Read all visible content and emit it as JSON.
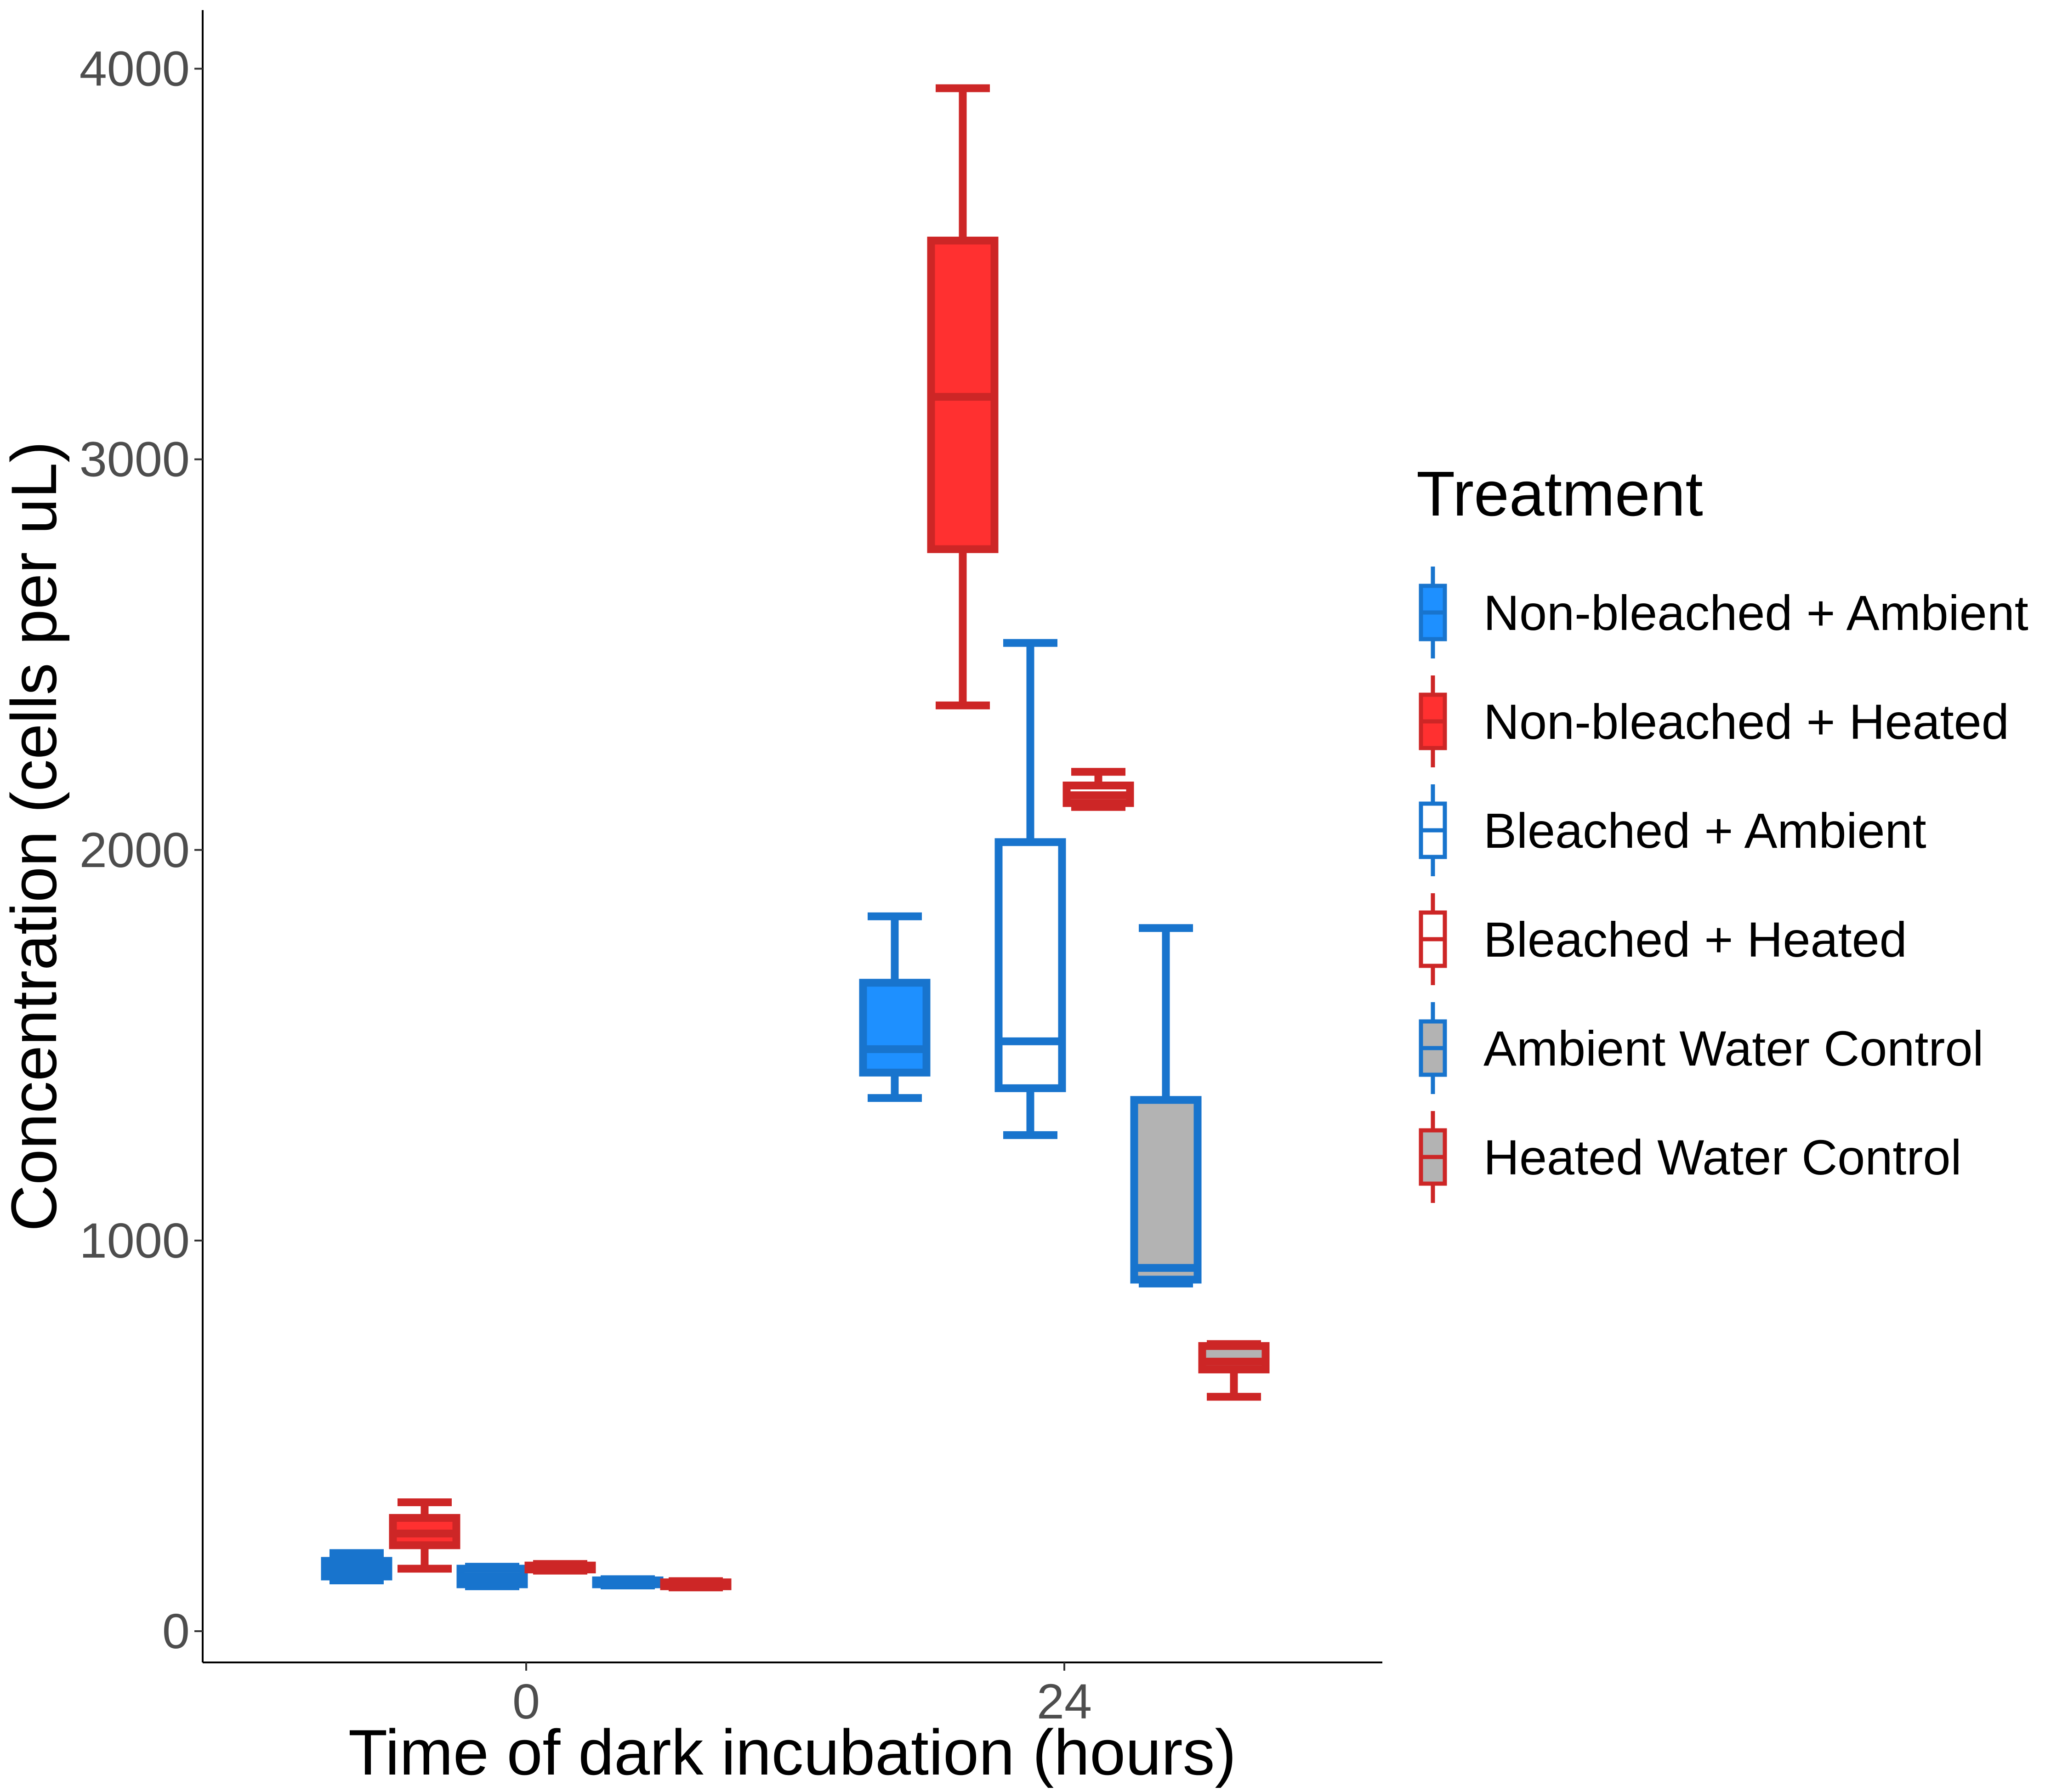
{
  "chart_data": {
    "type": "boxplot",
    "xlabel": "Time of dark incubation (hours)",
    "ylabel": "Concentration (cells per uL)",
    "categories": [
      "0",
      "24"
    ],
    "y_ticks": [
      "0",
      "1000",
      "2000",
      "3000",
      "4000"
    ],
    "ylim": [
      -80,
      4150
    ],
    "grid": false,
    "legend": {
      "title": "Treatment",
      "position": "right",
      "items": [
        {
          "label": "Non-bleached + Ambient",
          "stroke": "#1874CD",
          "fill": "#1E90FF"
        },
        {
          "label": "Non-bleached + Heated",
          "stroke": "#CD2626",
          "fill": "#FF3030"
        },
        {
          "label": "Bleached + Ambient",
          "stroke": "#1874CD",
          "fill": "#FFFFFF"
        },
        {
          "label": "Bleached + Heated",
          "stroke": "#CD2626",
          "fill": "#FFFFFF"
        },
        {
          "label": "Ambient Water Control",
          "stroke": "#1874CD",
          "fill": "#B3B3B3"
        },
        {
          "label": "Heated Water Control",
          "stroke": "#CD2626",
          "fill": "#B3B3B3"
        }
      ]
    },
    "series": [
      {
        "name": "Non-bleached + Ambient",
        "boxes": [
          {
            "x": "0",
            "min": 130,
            "q1": 140,
            "median": 160,
            "q3": 180,
            "max": 200
          },
          {
            "x": "24",
            "min": 1365,
            "q1": 1430,
            "median": 1490,
            "q3": 1660,
            "max": 1830
          }
        ]
      },
      {
        "name": "Non-bleached + Heated",
        "boxes": [
          {
            "x": "0",
            "min": 160,
            "q1": 220,
            "median": 250,
            "q3": 290,
            "max": 330
          },
          {
            "x": "24",
            "min": 2370,
            "q1": 2770,
            "median": 3160,
            "q3": 3560,
            "max": 3950
          }
        ]
      },
      {
        "name": "Bleached + Ambient",
        "boxes": [
          {
            "x": "0",
            "min": 115,
            "q1": 120,
            "median": 140,
            "q3": 160,
            "max": 165
          },
          {
            "x": "24",
            "min": 1270,
            "q1": 1390,
            "median": 1510,
            "q3": 2020,
            "max": 2530
          }
        ]
      },
      {
        "name": "Bleached + Heated",
        "boxes": [
          {
            "x": "0",
            "min": 155,
            "q1": 158,
            "median": 163,
            "q3": 168,
            "max": 172
          },
          {
            "x": "24",
            "min": 2110,
            "q1": 2120,
            "median": 2140,
            "q3": 2165,
            "max": 2200
          }
        ]
      },
      {
        "name": "Ambient Water Control",
        "boxes": [
          {
            "x": "0",
            "min": 117,
            "q1": 120,
            "median": 125,
            "q3": 130,
            "max": 133
          },
          {
            "x": "24",
            "min": 890,
            "q1": 900,
            "median": 930,
            "q3": 1360,
            "max": 1800
          }
        ]
      },
      {
        "name": "Heated Water Control",
        "boxes": [
          {
            "x": "0",
            "min": 112,
            "q1": 115,
            "median": 120,
            "q3": 125,
            "max": 128
          },
          {
            "x": "24",
            "min": 600,
            "q1": 670,
            "median": 690,
            "q3": 730,
            "max": 735
          }
        ]
      }
    ]
  }
}
